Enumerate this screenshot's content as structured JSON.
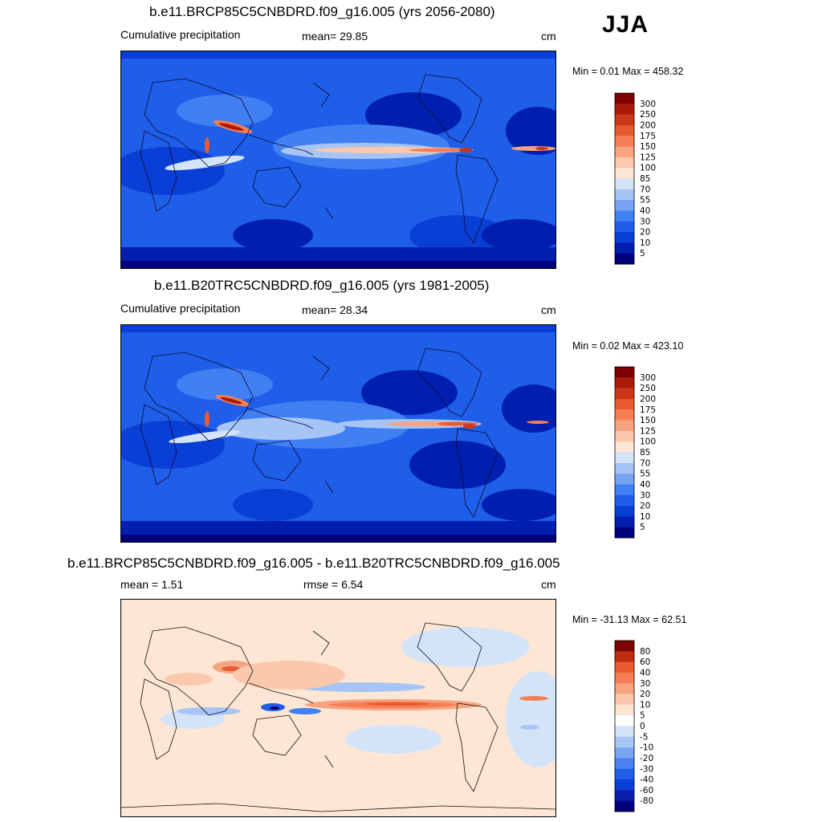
{
  "season_label": "JJA",
  "colors": {
    "precip_scale": [
      "#00007f",
      "#001fae",
      "#0a3fd6",
      "#1f5ee8",
      "#4080f2",
      "#78a3f2",
      "#a6c4f5",
      "#d4e4f8",
      "#fde6d4",
      "#fcc8ad",
      "#f8a37f",
      "#f57e55",
      "#e85a31",
      "#cc3718",
      "#aa1a0a",
      "#7f0000"
    ],
    "diff_scale": [
      "#00007f",
      "#0a1fa8",
      "#0a3fd6",
      "#1f5ee8",
      "#4a82f0",
      "#7aa5f2",
      "#a8c6f6",
      "#d2e3f8",
      "#ffffff",
      "#fde6d4",
      "#fcc8ad",
      "#f8a37f",
      "#f57e55",
      "#e85a31",
      "#c02c12",
      "#7f0000"
    ]
  },
  "panels": [
    {
      "title": "b.e11.BRCP85C5CNBDRD.f09_g16.005 (yrs 2056-2080)",
      "left_label": "Cumulative precipitation",
      "center_label": "mean=  29.85",
      "units": "cm",
      "minmax": "Min =   0.01 Max = 458.32",
      "ticks": [
        "300",
        "250",
        "200",
        "175",
        "150",
        "125",
        "100",
        "85",
        "70",
        "55",
        "40",
        "30",
        "20",
        "10",
        "5"
      ],
      "map_variant": "future"
    },
    {
      "title": "b.e11.B20TRC5CNBDRD.f09_g16.005 (yrs 1981-2005)",
      "left_label": "Cumulative precipitation",
      "center_label": "mean=  28.34",
      "units": "cm",
      "minmax": "Min =   0.02 Max = 423.10",
      "ticks": [
        "300",
        "250",
        "200",
        "175",
        "150",
        "125",
        "100",
        "85",
        "70",
        "55",
        "40",
        "30",
        "20",
        "10",
        "5"
      ],
      "map_variant": "historical"
    },
    {
      "title": "b.e11.BRCP85C5CNBDRD.f09_g16.005 - b.e11.B20TRC5CNBDRD.f09_g16.005",
      "left_label": "mean =   1.51",
      "center_label": "rmse =   6.54",
      "units": "cm",
      "minmax": "Min = -31.13 Max =  62.51",
      "ticks": [
        "80",
        "60",
        "40",
        "30",
        "20",
        "10",
        "5",
        "0",
        "-5",
        "-10",
        "-20",
        "-30",
        "-40",
        "-60",
        "-80"
      ],
      "map_variant": "difference"
    }
  ]
}
